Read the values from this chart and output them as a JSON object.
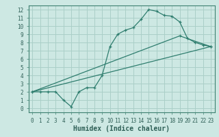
{
  "xlabel": "Humidex (Indice chaleur)",
  "xlim": [
    -0.5,
    23.5
  ],
  "ylim": [
    -0.5,
    12.5
  ],
  "xticks": [
    0,
    1,
    2,
    3,
    4,
    5,
    6,
    7,
    8,
    9,
    10,
    11,
    12,
    13,
    14,
    15,
    16,
    17,
    18,
    19,
    20,
    21,
    22,
    23
  ],
  "yticks": [
    0,
    1,
    2,
    3,
    4,
    5,
    6,
    7,
    8,
    9,
    10,
    11,
    12
  ],
  "bg_color": "#cde8e3",
  "line_color": "#2e7d6e",
  "grid_color": "#aacfc8",
  "line1_x": [
    0,
    1,
    2,
    3,
    4,
    5,
    6,
    7,
    8,
    9,
    10,
    11,
    12,
    13,
    14,
    15,
    16,
    17,
    18,
    19,
    20,
    21,
    22,
    23
  ],
  "line1_y": [
    2.0,
    2.0,
    2.0,
    2.0,
    1.0,
    0.2,
    2.0,
    2.5,
    2.5,
    4.0,
    7.5,
    9.0,
    9.5,
    9.8,
    10.8,
    12.0,
    11.8,
    11.3,
    11.2,
    10.5,
    8.5,
    8.0,
    7.7,
    7.5
  ],
  "line2_x": [
    0,
    19,
    23
  ],
  "line2_y": [
    2.0,
    8.8,
    7.5
  ],
  "line3_x": [
    0,
    23
  ],
  "line3_y": [
    2.0,
    7.5
  ],
  "tick_fontsize": 5.5,
  "label_fontsize": 7.0
}
